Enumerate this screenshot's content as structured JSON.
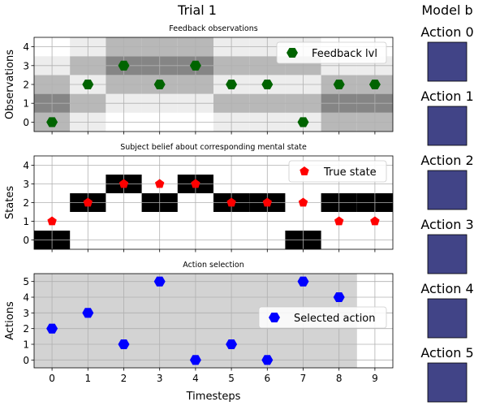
{
  "figure": {
    "title": "Trial 1",
    "side_title": "Model b"
  },
  "chart_data": [
    {
      "type": "heatmap",
      "title": "Feedback observations",
      "ylabel": "Observations",
      "xlim": [
        -0.5,
        9.5
      ],
      "ylim": [
        -0.5,
        4.5
      ],
      "yticks": [
        0,
        1,
        2,
        3,
        4
      ],
      "grid": true,
      "legend": {
        "label": "Feedback lvl",
        "placement": "top-right",
        "color": "#006400",
        "marker": "hexagon"
      },
      "heat_columns": [
        [
          0.72,
          0.52,
          0.72,
          0.93,
          1.0
        ],
        [
          0.93,
          0.72,
          0.93,
          0.72,
          0.93
        ],
        [
          1.0,
          0.93,
          0.72,
          0.52,
          0.72
        ],
        [
          1.0,
          0.93,
          0.72,
          0.52,
          0.72
        ],
        [
          1.0,
          0.93,
          0.72,
          0.52,
          0.72
        ],
        [
          0.93,
          0.72,
          0.93,
          0.72,
          0.93
        ],
        [
          0.93,
          0.72,
          0.93,
          0.72,
          0.93
        ],
        [
          0.93,
          0.72,
          0.93,
          0.72,
          0.93
        ],
        [
          0.72,
          0.52,
          0.72,
          0.93,
          1.0
        ],
        [
          0.72,
          0.52,
          0.72,
          0.93,
          1.0
        ]
      ],
      "points": {
        "x": [
          0,
          1,
          2,
          3,
          4,
          5,
          6,
          7,
          8,
          9
        ],
        "y": [
          0,
          2,
          3,
          2,
          3,
          2,
          2,
          0,
          2,
          2
        ]
      }
    },
    {
      "type": "heatmap",
      "title": "Subject belief about corresponding mental state",
      "ylabel": "States",
      "xlim": [
        -0.5,
        9.5
      ],
      "ylim": [
        -0.5,
        4.5
      ],
      "yticks": [
        0,
        1,
        2,
        3,
        4
      ],
      "grid": true,
      "legend": {
        "label": "True state",
        "placement": "top-right",
        "color": "#ff0000",
        "marker": "pentagon"
      },
      "belief_states": [
        0,
        2,
        3,
        2,
        3,
        2,
        2,
        0,
        2,
        2
      ],
      "points": {
        "x": [
          0,
          1,
          2,
          3,
          4,
          5,
          6,
          7,
          8,
          9
        ],
        "y": [
          1,
          2,
          3,
          3,
          3,
          2,
          2,
          2,
          1,
          1
        ]
      }
    },
    {
      "type": "scatter",
      "title": "Action selection",
      "ylabel": "Actions",
      "xlabel": "Timesteps",
      "xlim": [
        -0.5,
        9.5
      ],
      "ylim": [
        -0.5,
        5.5
      ],
      "xticks": [
        0,
        1,
        2,
        3,
        4,
        5,
        6,
        7,
        8,
        9
      ],
      "yticks": [
        0,
        1,
        2,
        3,
        4,
        5
      ],
      "grid": true,
      "shaded_span": [
        -0.5,
        8.5
      ],
      "legend": {
        "label": "Selected action",
        "placement": "center-right",
        "color": "#0000ff",
        "marker": "hexagon"
      },
      "points": {
        "x": [
          0,
          1,
          2,
          3,
          4,
          5,
          6,
          7,
          8
        ],
        "y": [
          2,
          3,
          1,
          5,
          0,
          1,
          0,
          5,
          4
        ]
      }
    }
  ],
  "model_b": {
    "color": "#414487",
    "actions": [
      "Action 0",
      "Action 1",
      "Action 2",
      "Action 3",
      "Action 4",
      "Action 5"
    ]
  }
}
